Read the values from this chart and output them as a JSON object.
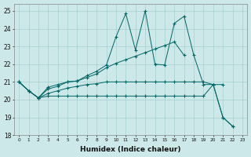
{
  "xlabel": "Humidex (Indice chaleur)",
  "bg_color": "#cce8e8",
  "grid_color": "#a8d0d0",
  "line_color": "#006666",
  "xlim_min": -0.5,
  "xlim_max": 23.5,
  "ylim_min": 18,
  "ylim_max": 25.4,
  "yticks": [
    18,
    19,
    20,
    21,
    22,
    23,
    24,
    25
  ],
  "xticks": [
    0,
    1,
    2,
    3,
    4,
    5,
    6,
    7,
    8,
    9,
    10,
    11,
    12,
    13,
    14,
    15,
    16,
    17,
    18,
    19,
    20,
    21,
    22,
    23
  ],
  "series": [
    {
      "x": [
        0,
        1,
        2,
        3,
        4,
        5,
        6,
        7,
        8,
        9,
        10,
        11,
        12,
        13,
        14,
        15,
        16,
        17,
        18,
        19,
        20,
        21,
        22
      ],
      "y": [
        21.0,
        20.5,
        20.1,
        20.7,
        20.85,
        21.0,
        21.05,
        21.35,
        21.6,
        21.95,
        23.55,
        24.85,
        22.8,
        25.0,
        22.0,
        21.95,
        24.3,
        24.7,
        22.5,
        20.85,
        20.85,
        19.0,
        18.5
      ]
    },
    {
      "x": [
        0,
        1,
        2,
        3,
        4,
        5,
        6,
        7,
        8,
        9,
        10,
        11,
        12,
        13,
        14,
        15,
        16,
        17
      ],
      "y": [
        21.0,
        20.5,
        20.1,
        20.6,
        20.75,
        21.0,
        21.05,
        21.25,
        21.45,
        21.8,
        22.05,
        22.25,
        22.45,
        22.65,
        22.85,
        23.05,
        23.25,
        22.5
      ]
    },
    {
      "x": [
        0,
        1,
        2,
        3,
        4,
        5,
        6,
        7,
        8,
        9,
        10,
        11,
        12,
        13,
        14,
        15,
        16,
        17,
        18,
        19,
        20,
        21
      ],
      "y": [
        21.0,
        20.5,
        20.1,
        20.35,
        20.5,
        20.65,
        20.75,
        20.85,
        20.9,
        21.0,
        21.0,
        21.0,
        21.0,
        21.0,
        21.0,
        21.0,
        21.0,
        21.0,
        21.0,
        21.0,
        20.85,
        20.85
      ]
    },
    {
      "x": [
        0,
        1,
        2,
        3,
        4,
        5,
        6,
        7,
        8,
        9,
        10,
        11,
        12,
        13,
        14,
        15,
        16,
        17,
        18,
        19,
        20,
        21,
        22
      ],
      "y": [
        21.0,
        20.5,
        20.1,
        20.2,
        20.2,
        20.2,
        20.2,
        20.2,
        20.2,
        20.2,
        20.2,
        20.2,
        20.2,
        20.2,
        20.2,
        20.2,
        20.2,
        20.2,
        20.2,
        20.2,
        20.85,
        19.0,
        18.5
      ]
    }
  ]
}
